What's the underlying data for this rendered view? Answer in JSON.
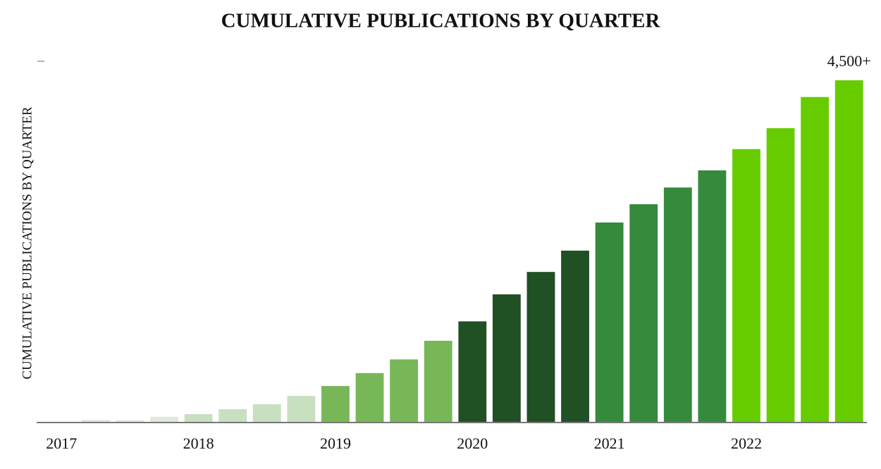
{
  "chart_data": {
    "type": "bar",
    "title": "CUMULATIVE PUBLICATIONS BY QUARTER",
    "y_label": "CUMULATIVE PUBLICATIONS BY QUARTER",
    "categories": [
      "2017",
      null,
      null,
      null,
      "2018",
      null,
      null,
      null,
      "2019",
      null,
      null,
      null,
      "2020",
      null,
      null,
      null,
      "2021",
      null,
      null,
      null,
      "2022",
      null,
      null,
      null
    ],
    "values": [
      5,
      35,
      30,
      75,
      110,
      175,
      240,
      350,
      480,
      650,
      830,
      1075,
      1330,
      1685,
      1980,
      2260,
      2630,
      2870,
      3090,
      3315,
      3595,
      3870,
      4280,
      4500
    ],
    "value_labels": [
      null,
      null,
      null,
      null,
      null,
      null,
      null,
      null,
      null,
      null,
      null,
      null,
      null,
      null,
      null,
      null,
      null,
      null,
      null,
      null,
      null,
      null,
      null,
      "4,500+"
    ],
    "colors": [
      "#dfe8da",
      "#dfe8da",
      "#dfe8da",
      "#dfe8da",
      "#c8dfc0",
      "#c8dfc0",
      "#c8dfc0",
      "#c8dfc0",
      "#77b757",
      "#77b757",
      "#77b757",
      "#77b757",
      "#205024",
      "#205024",
      "#205024",
      "#205024",
      "#358a3c",
      "#358a3c",
      "#358a3c",
      "#358a3c",
      "#66cc00",
      "#66cc00",
      "#66cc00",
      "#66cc00"
    ],
    "ylim": [
      0,
      4750
    ]
  }
}
